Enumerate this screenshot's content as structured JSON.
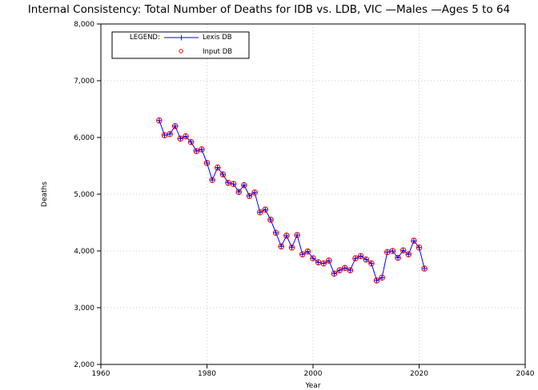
{
  "chart_data": {
    "type": "line",
    "title": "Internal Consistency: Total Number of Deaths for IDB vs. LDB, VIC —Males —Ages 5 to 64",
    "xlabel": "Year",
    "ylabel": "Deaths",
    "xlim": [
      1960,
      2040
    ],
    "ylim": [
      2000,
      8000
    ],
    "x_ticks": [
      1960,
      1980,
      2000,
      2020,
      2040
    ],
    "y_ticks": [
      2000,
      3000,
      4000,
      5000,
      6000,
      7000,
      8000
    ],
    "x_tick_labels": [
      "1960",
      "1980",
      "2000",
      "2020",
      "2040"
    ],
    "y_tick_labels": [
      "2,000",
      "3,000",
      "4,000",
      "5,000",
      "6,000",
      "7,000",
      "8,000"
    ],
    "grid": true,
    "legend": {
      "title": "LEGEND:",
      "placement": "top-left",
      "entries": [
        "Lexis DB",
        "Input DB"
      ]
    },
    "colors": {
      "lexis": "#0000ff",
      "input": "#ff0000"
    },
    "x": [
      1971,
      1972,
      1973,
      1974,
      1975,
      1976,
      1977,
      1978,
      1979,
      1980,
      1981,
      1982,
      1983,
      1984,
      1985,
      1986,
      1987,
      1988,
      1989,
      1990,
      1991,
      1992,
      1993,
      1994,
      1995,
      1996,
      1997,
      1998,
      1999,
      2000,
      2001,
      2002,
      2003,
      2004,
      2005,
      2006,
      2007,
      2008,
      2009,
      2010,
      2011,
      2012,
      2013,
      2014,
      2015,
      2016,
      2017,
      2018,
      2019,
      2020,
      2021
    ],
    "series": [
      {
        "name": "Lexis DB",
        "values": [
          6300,
          6040,
          6060,
          6200,
          5980,
          6020,
          5920,
          5760,
          5790,
          5550,
          5250,
          5470,
          5350,
          5200,
          5180,
          5040,
          5160,
          4970,
          5030,
          4680,
          4730,
          4550,
          4320,
          4080,
          4270,
          4060,
          4280,
          3940,
          3990,
          3870,
          3800,
          3780,
          3830,
          3600,
          3660,
          3700,
          3660,
          3870,
          3910,
          3850,
          3780,
          3480,
          3530,
          3980,
          4000,
          3880,
          4010,
          3940,
          4180,
          4060,
          3690
        ]
      },
      {
        "name": "Input DB",
        "values": [
          6300,
          6040,
          6060,
          6200,
          5980,
          6020,
          5920,
          5760,
          5790,
          5550,
          5250,
          5470,
          5350,
          5200,
          5180,
          5040,
          5160,
          4970,
          5030,
          4680,
          4730,
          4550,
          4320,
          4080,
          4270,
          4060,
          4280,
          3940,
          3990,
          3870,
          3800,
          3780,
          3830,
          3600,
          3660,
          3700,
          3660,
          3870,
          3910,
          3850,
          3780,
          3480,
          3530,
          3980,
          4000,
          3880,
          4010,
          3940,
          4180,
          4060,
          3690
        ]
      }
    ]
  }
}
